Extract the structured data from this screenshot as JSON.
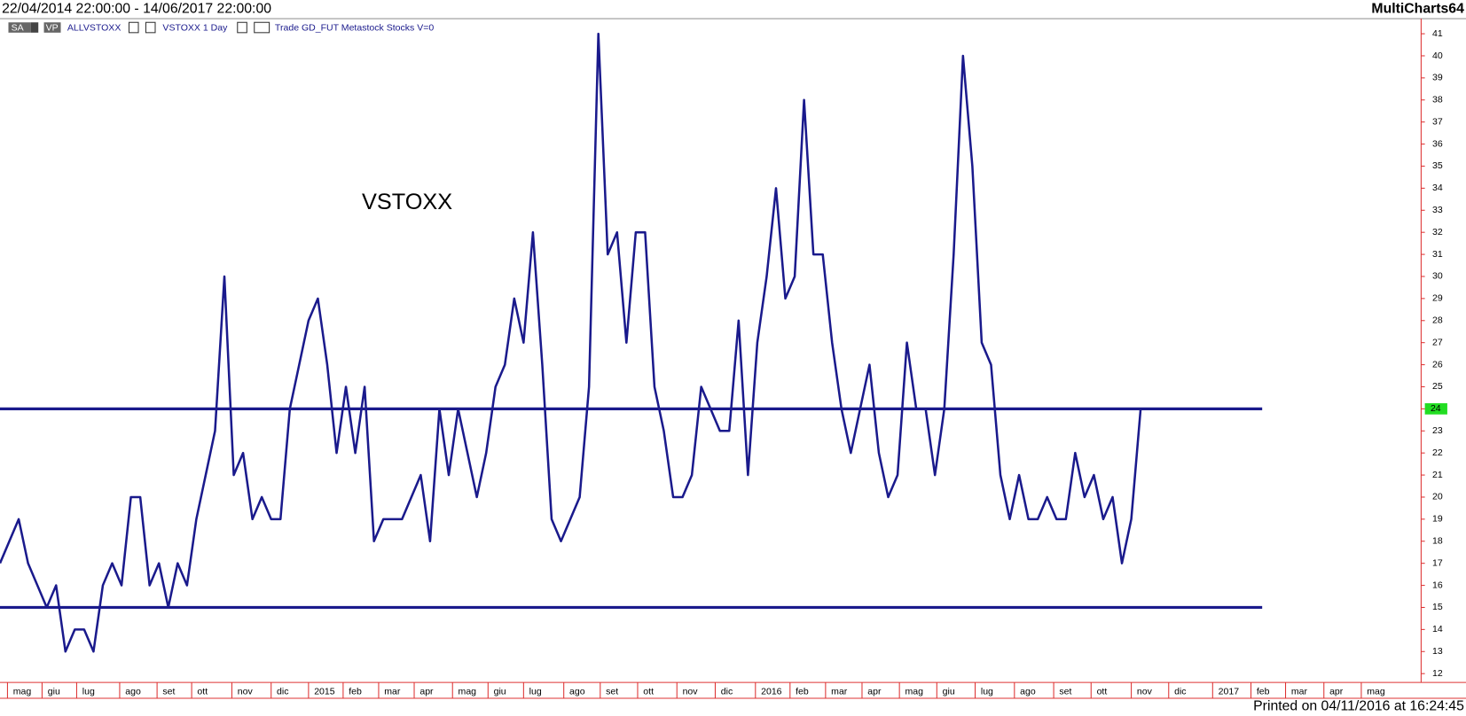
{
  "chart_data": {
    "type": "line",
    "header_left": "22/04/2014 22:00:00 - 14/06/2017 22:00:00",
    "header_right": "MultiCharts64",
    "toolbar": [
      "SA",
      "VP",
      "ALLVSTOXX",
      "VSTOXX  1 Day",
      "Trade  GD_FUT  Metastock  Stocks  V=0"
    ],
    "annotation": "VSTOXX",
    "footer": "Printed on 04/11/2016 at 16:24:45",
    "series": [
      {
        "name": "VSTOXX",
        "color": "#1a1a8c",
        "values": [
          17,
          18,
          19,
          17,
          16,
          15,
          16,
          13,
          14,
          14,
          13,
          16,
          17,
          16,
          20,
          20,
          16,
          17,
          15,
          17,
          16,
          19,
          21,
          23,
          30,
          21,
          22,
          19,
          20,
          19,
          19,
          24,
          26,
          28,
          29,
          26,
          22,
          25,
          22,
          25,
          18,
          19,
          19,
          19,
          20,
          21,
          18,
          24,
          21,
          24,
          22,
          20,
          22,
          25,
          26,
          29,
          27,
          32,
          26,
          19,
          18,
          19,
          20,
          25,
          41,
          31,
          32,
          27,
          32,
          32,
          25,
          23,
          20,
          20,
          21,
          25,
          24,
          23,
          23,
          28,
          21,
          27,
          30,
          34,
          29,
          30,
          38,
          31,
          31,
          27,
          24,
          22,
          24,
          26,
          22,
          20,
          21,
          27,
          24,
          24,
          21,
          24,
          31,
          40,
          35,
          27,
          26,
          21,
          19,
          21,
          19,
          19,
          20,
          19,
          19,
          22,
          20,
          21,
          19,
          20,
          17,
          19,
          24
        ]
      }
    ],
    "hlines": [
      24,
      15
    ],
    "xlim": [
      0,
      152
    ],
    "xticks": [
      {
        "value": 0.8,
        "label": "mag"
      },
      {
        "value": 4.5,
        "label": "giu"
      },
      {
        "value": 8.2,
        "label": "lug"
      },
      {
        "value": 12.8,
        "label": "ago"
      },
      {
        "value": 16.8,
        "label": "set"
      },
      {
        "value": 20.5,
        "label": "ott"
      },
      {
        "value": 24.8,
        "label": "nov"
      },
      {
        "value": 29,
        "label": "dic"
      },
      {
        "value": 33,
        "label": "2015"
      },
      {
        "value": 36.7,
        "label": "feb"
      },
      {
        "value": 40.5,
        "label": "mar"
      },
      {
        "value": 44.3,
        "label": "apr"
      },
      {
        "value": 48.4,
        "label": "mag"
      },
      {
        "value": 52.2,
        "label": "giu"
      },
      {
        "value": 56,
        "label": "lug"
      },
      {
        "value": 60.3,
        "label": "ago"
      },
      {
        "value": 64.2,
        "label": "set"
      },
      {
        "value": 68.2,
        "label": "ott"
      },
      {
        "value": 72.4,
        "label": "nov"
      },
      {
        "value": 76.5,
        "label": "dic"
      },
      {
        "value": 80.8,
        "label": "2016"
      },
      {
        "value": 84.5,
        "label": "feb"
      },
      {
        "value": 88.3,
        "label": "mar"
      },
      {
        "value": 92.2,
        "label": "apr"
      },
      {
        "value": 96.2,
        "label": "mag"
      },
      {
        "value": 100.2,
        "label": "giu"
      },
      {
        "value": 104.3,
        "label": "lug"
      },
      {
        "value": 108.5,
        "label": "ago"
      },
      {
        "value": 112.7,
        "label": "set"
      },
      {
        "value": 116.7,
        "label": "ott"
      },
      {
        "value": 121,
        "label": "nov"
      },
      {
        "value": 125,
        "label": "dic"
      },
      {
        "value": 129.7,
        "label": "2017"
      },
      {
        "value": 133.8,
        "label": "feb"
      },
      {
        "value": 137.5,
        "label": "mar"
      },
      {
        "value": 141.6,
        "label": "apr"
      },
      {
        "value": 145.6,
        "label": "mag"
      }
    ],
    "ylim": [
      11.6,
      41.6
    ],
    "yticks": [
      12,
      13,
      14,
      15,
      16,
      17,
      18,
      19,
      20,
      21,
      22,
      23,
      24,
      25,
      26,
      27,
      28,
      29,
      30,
      31,
      32,
      33,
      34,
      35,
      36,
      37,
      38,
      39,
      40,
      41
    ],
    "last_marker_color": "#22dd22"
  }
}
